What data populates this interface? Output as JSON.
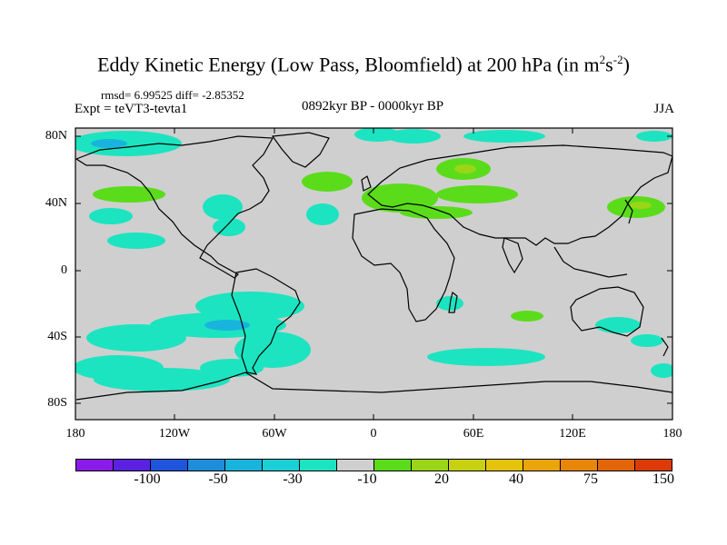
{
  "title": "Eddy Kinetic Energy (Low Pass, Bloomfield) at 200 hPa (in m",
  "title_sup1": "2",
  "title_mid": "s",
  "title_sup2": "-2",
  "title_end": ")",
  "stats": "rmsd= 6.99525 diff= -2.85352",
  "experiment": "Expt = teVT3-tevta1",
  "period": "0892kyr BP - 0000kyr BP",
  "season": "JJA",
  "lat_ticks": [
    "80N",
    "40N",
    "0",
    "40S",
    "80S"
  ],
  "lon_ticks": [
    "180",
    "120W",
    "60W",
    "0",
    "60E",
    "120E",
    "180"
  ],
  "colorbar": {
    "colors": [
      "#8b1be8",
      "#5a22e0",
      "#1f55dc",
      "#1d8ddc",
      "#19b4dd",
      "#1bcfd6",
      "#1ce4c0",
      "#cfcfcf",
      "#5bdc1b",
      "#9ad617",
      "#c8d012",
      "#e5c20c",
      "#eaa50b",
      "#e8860a",
      "#e26609",
      "#dc3b08"
    ],
    "labels": [
      "-100",
      "-50",
      "-30",
      "-10",
      "20",
      "40",
      "75",
      "150"
    ]
  },
  "map_colors": {
    "background": "#cfcfcf",
    "negative": "#1ce4c0",
    "negative_strong": "#19b4dd",
    "positive": "#5bdc1b",
    "positive_strong": "#9ad617"
  }
}
